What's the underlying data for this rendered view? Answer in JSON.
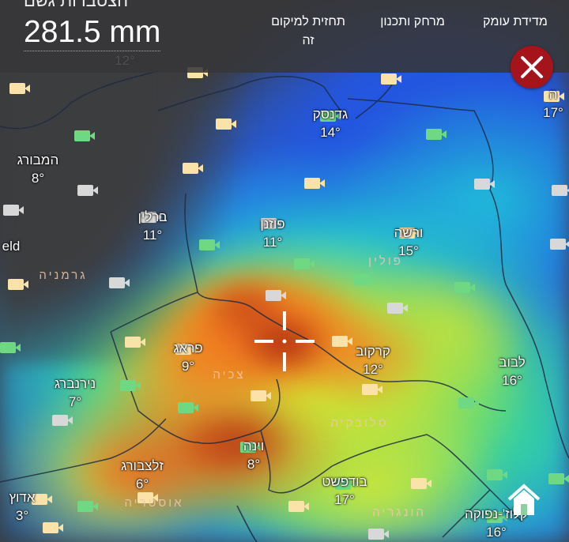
{
  "header": {
    "cut_title": "הצטברות גשם",
    "value": "281.5 mm",
    "buttons": [
      {
        "label": "מדידת עומק",
        "icon": "bar-chart-icon"
      },
      {
        "label": "מרחק ותכנון",
        "icon": "ruler-icon"
      },
      {
        "label": "תחזית למיקום זה",
        "icon": "cloud-icon"
      }
    ],
    "close_icon": "close-icon",
    "close_color": "#a5141a"
  },
  "map": {
    "cities": [
      {
        "name": "גדנסק",
        "temp": "14°"
      },
      {
        "name": "המבורג",
        "temp": "8°"
      },
      {
        "name": "ברלין",
        "temp": "11°"
      },
      {
        "name": "פוזנן",
        "temp": "11°"
      },
      {
        "name": "ורשה",
        "temp": "15°"
      },
      {
        "name": "קרקוב",
        "temp": "12°"
      },
      {
        "name": "פראג",
        "temp": "9°"
      },
      {
        "name": "לבוב",
        "temp": "16°"
      },
      {
        "name": "נירנברג",
        "temp": "7°"
      },
      {
        "name": "וינה",
        "temp": "8°"
      },
      {
        "name": "זלצבורג",
        "temp": "6°"
      },
      {
        "name": "בודפשט",
        "temp": "17°"
      },
      {
        "name": "קלוז'-נפוקה",
        "temp": "16°"
      },
      {
        "name": "אדוץ",
        "temp": "3°"
      },
      {
        "name": "ה",
        "temp": "17°"
      },
      {
        "name": "eld",
        "temp": ""
      },
      {
        "name": "",
        "temp": "12°"
      }
    ],
    "countries": [
      "גרמניה",
      "פולין",
      "צכיה",
      "סלובקיה",
      "אוסטריה",
      "הונגריה"
    ],
    "crosshair_icon": "crosshair-icon",
    "home_icon": "home-icon",
    "webcam_colors": {
      "yellow": "#fbe2a8",
      "green": "#6fd882",
      "gray": "#d8d8d8"
    }
  }
}
